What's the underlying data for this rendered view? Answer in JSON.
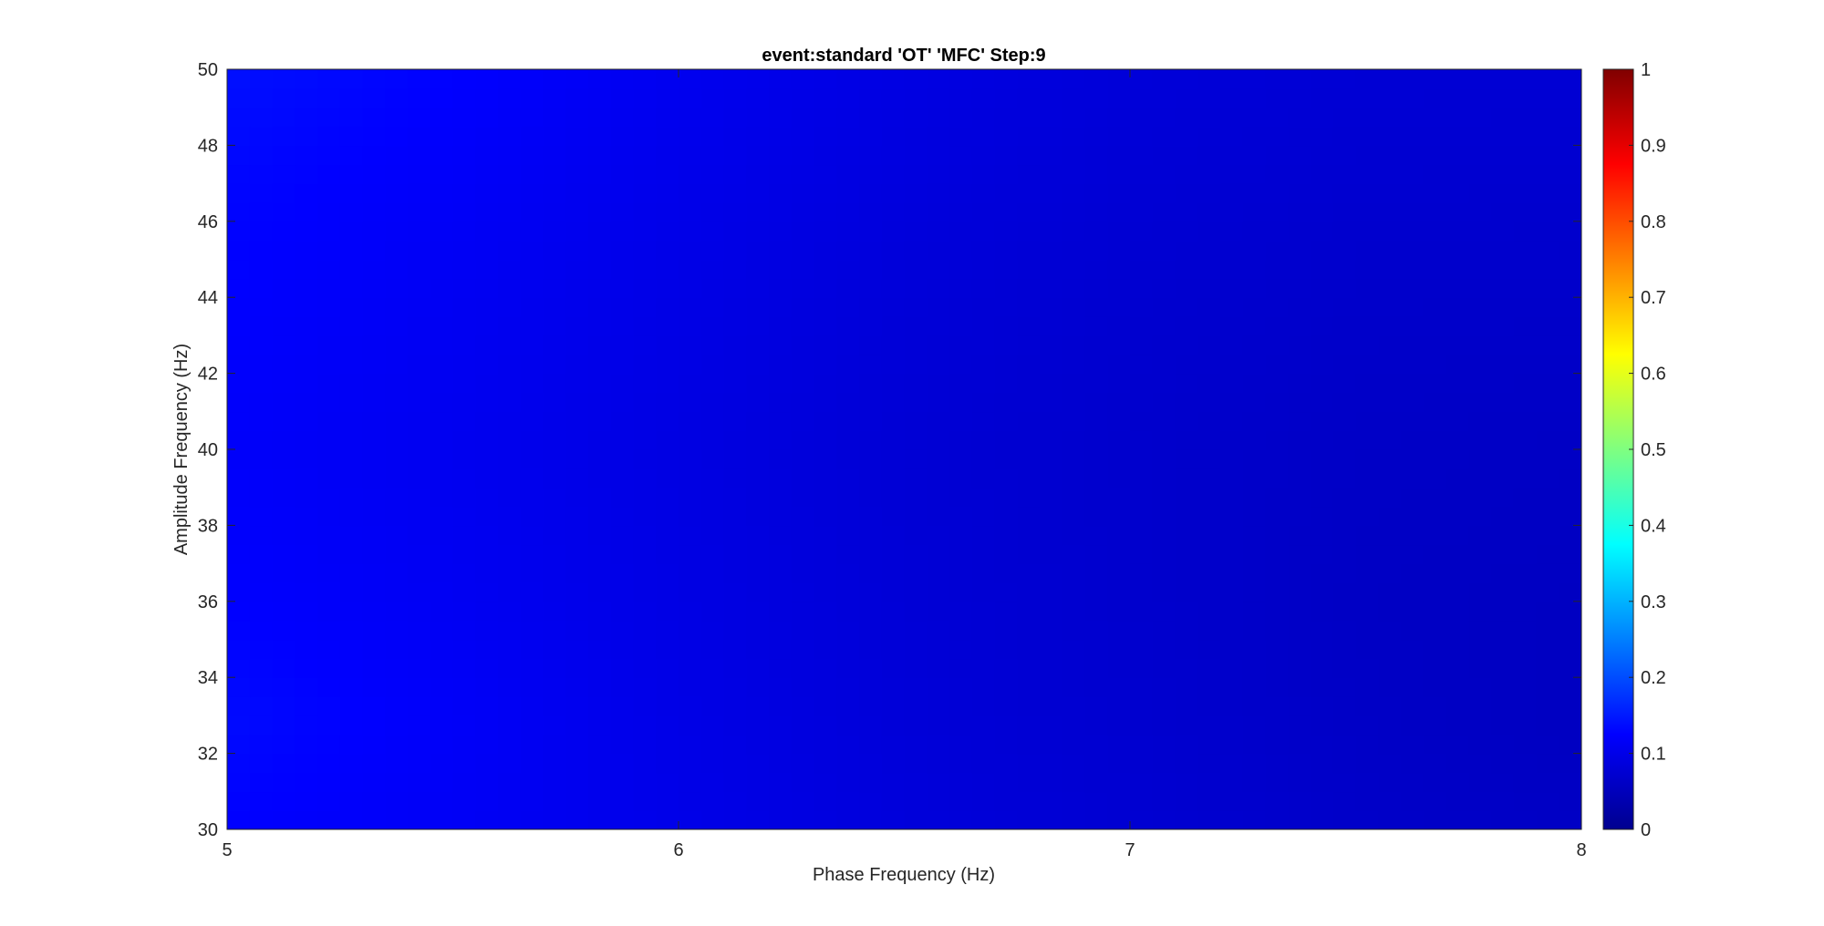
{
  "chart_data": {
    "type": "heatmap",
    "title": "event:standard 'OT'  'MFC' Step:9",
    "xlabel": "Phase Frequency (Hz)",
    "ylabel": "Amplitude Frequency (Hz)",
    "xlim": [
      5,
      8
    ],
    "ylim": [
      30,
      50
    ],
    "xticks": [
      5,
      6,
      7,
      8
    ],
    "yticks": [
      30,
      32,
      34,
      36,
      38,
      40,
      42,
      44,
      46,
      48,
      50
    ],
    "x": [
      5.0,
      5.5,
      6.0,
      6.5,
      7.0,
      7.5,
      8.0
    ],
    "y": [
      30,
      33,
      36,
      40,
      44,
      47,
      50
    ],
    "z": [
      [
        0.125,
        0.115,
        0.1,
        0.085,
        0.075,
        0.065,
        0.06
      ],
      [
        0.135,
        0.118,
        0.098,
        0.082,
        0.072,
        0.062,
        0.056
      ],
      [
        0.125,
        0.112,
        0.095,
        0.08,
        0.07,
        0.06,
        0.057
      ],
      [
        0.12,
        0.108,
        0.093,
        0.078,
        0.069,
        0.062,
        0.06
      ],
      [
        0.125,
        0.112,
        0.097,
        0.082,
        0.073,
        0.067,
        0.066
      ],
      [
        0.13,
        0.118,
        0.102,
        0.088,
        0.078,
        0.073,
        0.072
      ],
      [
        0.14,
        0.126,
        0.108,
        0.093,
        0.083,
        0.078,
        0.077
      ]
    ],
    "colorbar": {
      "colormap": "jet",
      "clim": [
        0,
        1
      ],
      "ticks": [
        0,
        0.1,
        0.2,
        0.3,
        0.4,
        0.5,
        0.6,
        0.7,
        0.8,
        0.9,
        1
      ]
    }
  }
}
